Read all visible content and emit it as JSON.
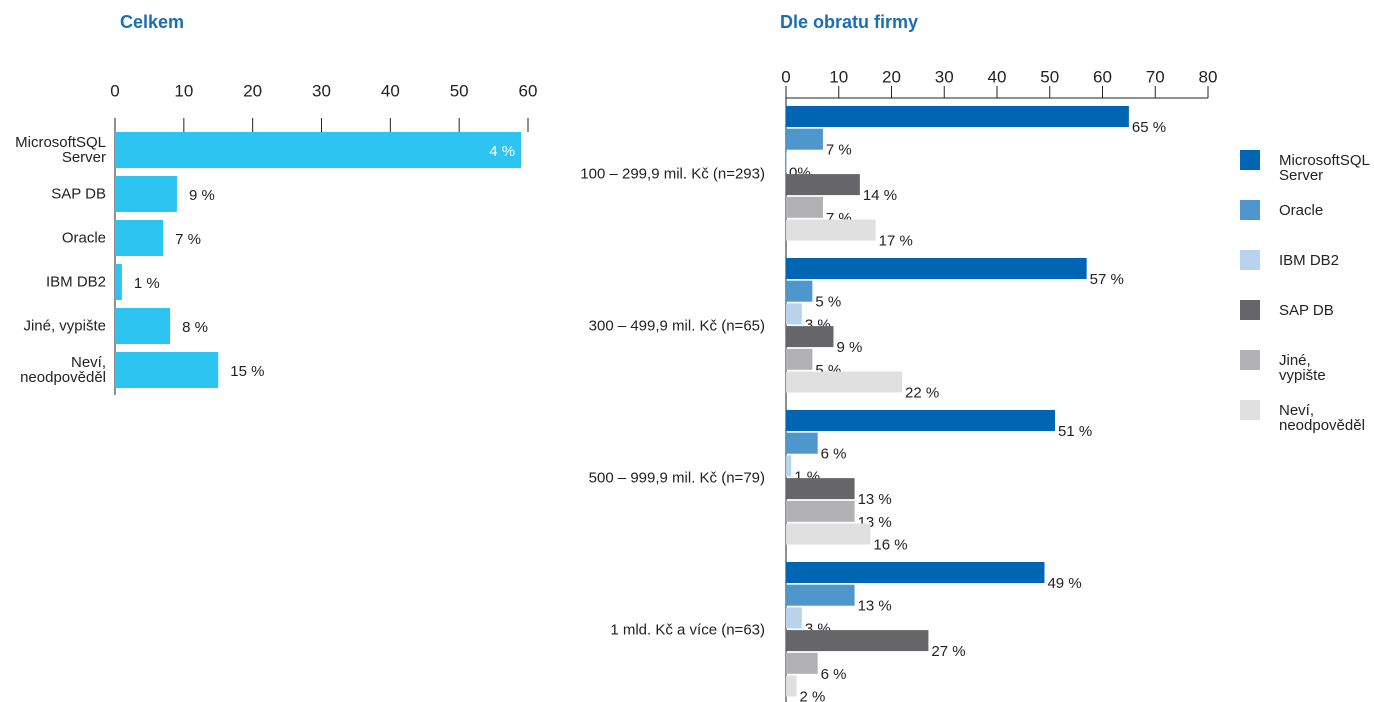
{
  "chart_data": [
    {
      "type": "hbar",
      "title": "Celkem",
      "categories": [
        "MicrosoftSQL Server",
        "SAP DB",
        "Oracle",
        "IBM DB2",
        "Jiné, vypište",
        "Neví, neodpověděl"
      ],
      "values": [
        59,
        9,
        7,
        1,
        8,
        15
      ],
      "value_labels": [
        null,
        "9 %",
        "7 %",
        "1 %",
        "8 %",
        "15 %"
      ],
      "annotation": "4 %",
      "color": "#2ec4f2",
      "xlim": [
        0,
        60
      ],
      "xticks": [
        0,
        10,
        20,
        30,
        40,
        50,
        60
      ]
    },
    {
      "type": "grouped_hbar",
      "title": "Dle obratu firmy",
      "categories": [
        "100 – 299,9 mil. Kč (n=293)",
        "300 – 499,9 mil. Kč (n=65)",
        "500 – 999,9 mil. Kč (n=79)",
        "1 mld. Kč a více (n=63)"
      ],
      "series": [
        {
          "name": "MicrosoftSQL Server",
          "color": "#0066b3",
          "values": [
            65,
            57,
            51,
            49
          ],
          "value_labels": [
            "65 %",
            "57 %",
            "51 %",
            "49 %"
          ]
        },
        {
          "name": "Oracle",
          "color": "#4f96cd",
          "values": [
            7,
            5,
            6,
            13
          ],
          "value_labels": [
            "7 %",
            "5 %",
            "6 %",
            "13 %"
          ]
        },
        {
          "name": "IBM DB2",
          "color": "#b8d4ec",
          "values": [
            0,
            3,
            1,
            3
          ],
          "value_labels": [
            "0%",
            "3 %",
            "1 %",
            "3 %"
          ]
        },
        {
          "name": "SAP DB",
          "color": "#666669",
          "values": [
            14,
            9,
            13,
            27
          ],
          "value_labels": [
            "14 %",
            "9 %",
            "13 %",
            "27 %"
          ]
        },
        {
          "name": "Jiné, vypište",
          "color": "#b1b1b3",
          "values": [
            7,
            5,
            13,
            6
          ],
          "value_labels": [
            "7 %",
            "5 %",
            "13 %",
            "6 %"
          ]
        },
        {
          "name": "Neví, neodpověděl",
          "color": "#e0e0e0",
          "values": [
            17,
            22,
            16,
            2
          ],
          "value_labels": [
            "17 %",
            "22 %",
            "16 %",
            "2 %"
          ]
        }
      ],
      "xlim": [
        0,
        80
      ],
      "xticks": [
        0,
        10,
        20,
        30,
        40,
        50,
        60,
        70,
        80
      ]
    }
  ]
}
